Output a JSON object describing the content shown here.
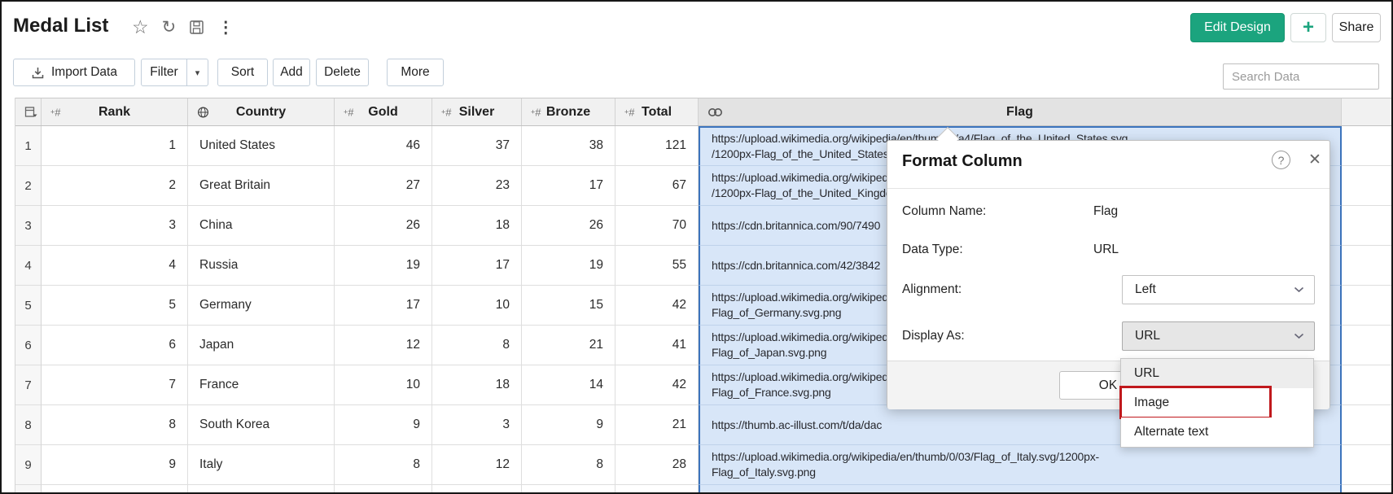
{
  "window": {
    "title": "Medal List"
  },
  "actions": {
    "edit_design": "Edit Design",
    "add_view": "+",
    "share": "Share"
  },
  "toolbar": {
    "import": "Import Data",
    "filter": "Filter",
    "filter_arrow": "▾",
    "sort": "Sort",
    "add": "Add",
    "delete": "Delete",
    "more": "More"
  },
  "search": {
    "placeholder": "Search Data"
  },
  "title_icons": {
    "star": "☆",
    "refresh": "↻",
    "kebab": "⋮"
  },
  "table": {
    "columns": {
      "rank": "Rank",
      "country": "Country",
      "gold": "Gold",
      "silver": "Silver",
      "bronze": "Bronze",
      "total": "Total",
      "flag": "Flag"
    },
    "rows": [
      {
        "num": "1",
        "rank": "1",
        "country": "United States",
        "gold": "46",
        "silver": "37",
        "bronze": "38",
        "total": "121",
        "flag_lines": [
          "https://upload.wikimedia.org/wikipedia/en/thumb/a/a4/Flag_of_the_United_States.svg",
          "/1200px-Flag_of_the_United_States"
        ]
      },
      {
        "num": "2",
        "rank": "2",
        "country": "Great Britain",
        "gold": "27",
        "silver": "23",
        "bronze": "17",
        "total": "67",
        "flag_lines": [
          "https://upload.wikimedia.org/wikipedia",
          "/1200px-Flag_of_the_United_Kingdo"
        ]
      },
      {
        "num": "3",
        "rank": "3",
        "country": "China",
        "gold": "26",
        "silver": "18",
        "bronze": "26",
        "total": "70",
        "flag_lines": [
          "https://cdn.britannica.com/90/7490"
        ]
      },
      {
        "num": "4",
        "rank": "4",
        "country": "Russia",
        "gold": "19",
        "silver": "17",
        "bronze": "19",
        "total": "55",
        "flag_lines": [
          "https://cdn.britannica.com/42/3842"
        ]
      },
      {
        "num": "5",
        "rank": "5",
        "country": "Germany",
        "gold": "17",
        "silver": "10",
        "bronze": "15",
        "total": "42",
        "flag_lines": [
          "https://upload.wikimedia.org/wikipedia",
          "Flag_of_Germany.svg.png"
        ]
      },
      {
        "num": "6",
        "rank": "6",
        "country": "Japan",
        "gold": "12",
        "silver": "8",
        "bronze": "21",
        "total": "41",
        "flag_lines": [
          "https://upload.wikimedia.org/wikipedia",
          "Flag_of_Japan.svg.png"
        ]
      },
      {
        "num": "7",
        "rank": "7",
        "country": "France",
        "gold": "10",
        "silver": "18",
        "bronze": "14",
        "total": "42",
        "flag_lines": [
          "https://upload.wikimedia.org/wikipedia",
          "Flag_of_France.svg.png"
        ]
      },
      {
        "num": "8",
        "rank": "8",
        "country": "South Korea",
        "gold": "9",
        "silver": "3",
        "bronze": "9",
        "total": "21",
        "flag_lines": [
          "https://thumb.ac-illust.com/t/da/dac"
        ]
      },
      {
        "num": "9",
        "rank": "9",
        "country": "Italy",
        "gold": "8",
        "silver": "12",
        "bronze": "8",
        "total": "28",
        "flag_lines": [
          "https://upload.wikimedia.org/wikipedia/en/thumb/0/03/Flag_of_Italy.svg/1200px-",
          "Flag_of_Italy.svg.png"
        ]
      }
    ]
  },
  "dialog": {
    "title": "Format Column",
    "help_icon": "?",
    "close_icon": "✕",
    "fields": [
      {
        "label": "Column Name:",
        "value": "Flag"
      },
      {
        "label": "Data Type:",
        "value": "URL"
      },
      {
        "label": "Alignment:",
        "value": "Left"
      },
      {
        "label": "Display As:",
        "value": "URL"
      }
    ],
    "ok_label": "OK",
    "dropdown": {
      "items": [
        "URL",
        "Image",
        "Alternate text"
      ],
      "highlighted": "URL",
      "annotated": "Image"
    }
  },
  "colors": {
    "accent_green": "#1ba47e",
    "selection_fill": "#d8e6f8",
    "selection_border": "#3c74bd",
    "annotation_red": "#c0181c"
  }
}
